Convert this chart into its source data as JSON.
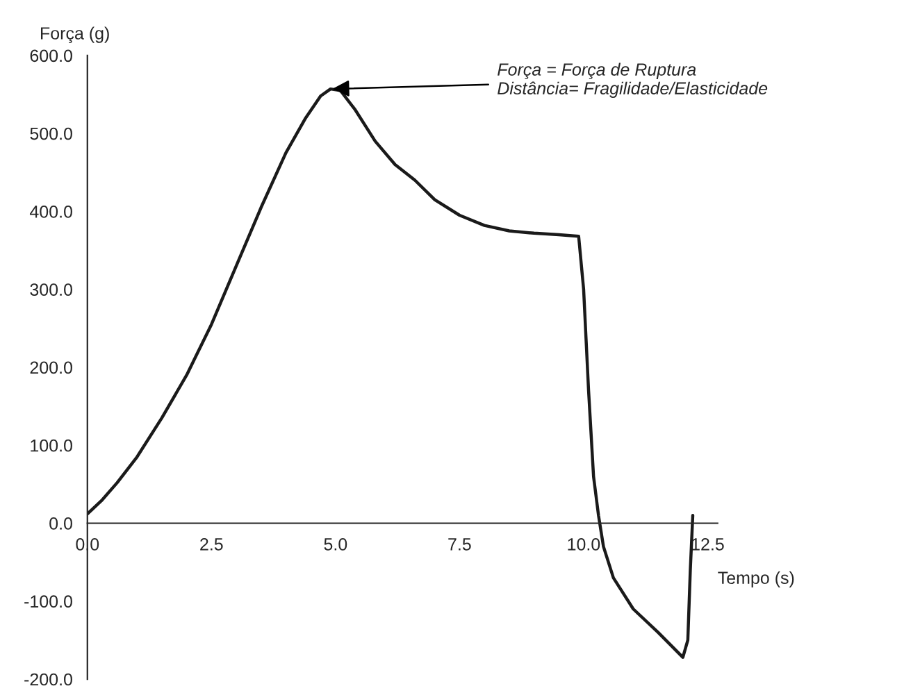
{
  "chart_data": {
    "type": "line",
    "xlabel": "Tempo (s)",
    "ylabel": "Força (g)",
    "x": [
      0,
      0.3,
      0.6,
      1.0,
      1.5,
      2.0,
      2.5,
      3.0,
      3.5,
      4.0,
      4.4,
      4.7,
      4.9,
      5.1,
      5.4,
      5.8,
      6.2,
      6.6,
      7.0,
      7.5,
      8.0,
      8.5,
      9.0,
      9.5,
      9.9,
      10.0,
      10.1,
      10.2,
      10.3,
      10.4,
      10.6,
      11.0,
      11.5,
      12.0,
      12.1,
      12.15,
      12.2
    ],
    "series": [
      {
        "color": "#1a1a1a",
        "values": [
          12,
          30,
          52,
          85,
          135,
          190,
          255,
          330,
          405,
          475,
          520,
          548,
          557,
          555,
          530,
          490,
          460,
          440,
          415,
          395,
          382,
          375,
          372,
          370,
          368,
          300,
          170,
          60,
          10,
          -30,
          -70,
          -110,
          -140,
          -172,
          -150,
          -60,
          10
        ]
      }
    ],
    "xlim": [
      0,
      12.7
    ],
    "ylim": [
      -200,
      600
    ],
    "xticks": [
      {
        "value": 0,
        "label": "0.0"
      },
      {
        "value": 2.5,
        "label": "2.5"
      },
      {
        "value": 5,
        "label": "5.0"
      },
      {
        "value": 7.5,
        "label": "7.5"
      },
      {
        "value": 10,
        "label": "10.0"
      },
      {
        "value": 12.5,
        "label": "12.5"
      }
    ],
    "yticks": [
      {
        "value": -200,
        "label": "-200.0"
      },
      {
        "value": -100,
        "label": "-100.0"
      },
      {
        "value": 0,
        "label": "0.0"
      },
      {
        "value": 100,
        "label": "100.0"
      },
      {
        "value": 200,
        "label": "200.0"
      },
      {
        "value": 300,
        "label": "300.0"
      },
      {
        "value": 400,
        "label": "400.0"
      },
      {
        "value": 500,
        "label": "500.0"
      },
      {
        "value": 600,
        "label": "600.0"
      }
    ],
    "annotations": [
      {
        "text": "Força = Força de Ruptura\nDistância= Fragilidade/Elasticidade",
        "x": 4.9,
        "y": 557
      }
    ],
    "grid": false,
    "legend": false,
    "marker": "none",
    "line_style": "solid"
  }
}
